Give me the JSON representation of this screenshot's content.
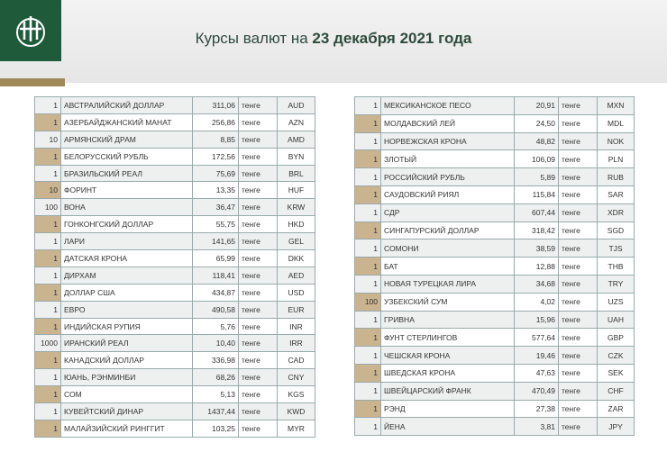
{
  "header": {
    "title_prefix": "Курсы валют на",
    "title_date": "23 декабря 2021 года"
  },
  "tables": [
    {
      "rows": [
        [
          1,
          "АВСТРАЛИЙСКИЙ ДОЛЛАР",
          "311,06",
          "тенге",
          "AUD"
        ],
        [
          1,
          "АЗЕРБАЙДЖАНСКИЙ МАНАТ",
          "256,86",
          "тенге",
          "AZN"
        ],
        [
          10,
          "АРМЯНСКИЙ ДРАМ",
          "8,85",
          "тенге",
          "AMD"
        ],
        [
          1,
          "БЕЛОРУССКИЙ РУБЛЬ",
          "172,56",
          "тенге",
          "BYN"
        ],
        [
          1,
          "БРАЗИЛЬСКИЙ РЕАЛ",
          "75,69",
          "тенге",
          "BRL"
        ],
        [
          10,
          "ФОРИНТ",
          "13,35",
          "тенге",
          "HUF"
        ],
        [
          100,
          "ВОНА",
          "36,47",
          "тенге",
          "KRW"
        ],
        [
          1,
          "ГОНКОНГСКИЙ ДОЛЛАР",
          "55,75",
          "тенге",
          "HKD"
        ],
        [
          1,
          "ЛАРИ",
          "141,65",
          "тенге",
          "GEL"
        ],
        [
          1,
          "ДАТСКАЯ КРОНА",
          "65,99",
          "тенге",
          "DKK"
        ],
        [
          1,
          "ДИРХАМ",
          "118,41",
          "тенге",
          "AED"
        ],
        [
          1,
          "ДОЛЛАР США",
          "434,87",
          "тенге",
          "USD"
        ],
        [
          1,
          "ЕВРО",
          "490,58",
          "тенге",
          "EUR"
        ],
        [
          1,
          "ИНДИЙСКАЯ РУПИЯ",
          "5,76",
          "тенге",
          "INR"
        ],
        [
          1000,
          "ИРАНСКИЙ РЕАЛ",
          "10,40",
          "тенге",
          "IRR"
        ],
        [
          1,
          "КАНАДСКИЙ ДОЛЛАР",
          "336,98",
          "тенге",
          "CAD"
        ],
        [
          1,
          "ЮАНЬ, РЭНМИНБИ",
          "68,26",
          "тенге",
          "CNY"
        ],
        [
          1,
          "СОМ",
          "5,13",
          "тенге",
          "KGS"
        ],
        [
          1,
          "КУВЕЙТСКИЙ ДИНАР",
          "1437,44",
          "тенге",
          "KWD"
        ],
        [
          1,
          "МАЛАЙЗИЙСКИЙ РИНГГИТ",
          "103,25",
          "тенге",
          "MYR"
        ]
      ]
    },
    {
      "rows": [
        [
          1,
          "МЕКСИКАНСКОЕ ПЕСО",
          "20,91",
          "тенге",
          "MXN"
        ],
        [
          1,
          "МОЛДАВСКИЙ ЛЕЙ",
          "24,50",
          "тенге",
          "MDL"
        ],
        [
          1,
          "НОРВЕЖСКАЯ КРОНА",
          "48,82",
          "тенге",
          "NOK"
        ],
        [
          1,
          "ЗЛОТЫЙ",
          "106,09",
          "тенге",
          "PLN"
        ],
        [
          1,
          "РОССИЙСКИЙ РУБЛЬ",
          "5,89",
          "тенге",
          "RUB"
        ],
        [
          1,
          "САУДОВСКИЙ РИЯЛ",
          "115,84",
          "тенге",
          "SAR"
        ],
        [
          1,
          "СДР",
          "607,44",
          "тенге",
          "XDR"
        ],
        [
          1,
          "СИНГАПУРСКИЙ ДОЛЛАР",
          "318,42",
          "тенге",
          "SGD"
        ],
        [
          1,
          "СОМОНИ",
          "38,59",
          "тенге",
          "TJS"
        ],
        [
          1,
          "БАТ",
          "12,88",
          "тенге",
          "THB"
        ],
        [
          1,
          "НОВАЯ ТУРЕЦКАЯ ЛИРА",
          "34,68",
          "тенге",
          "TRY"
        ],
        [
          100,
          "УЗБЕКСКИЙ СУМ",
          "4,02",
          "тенге",
          "UZS"
        ],
        [
          1,
          "ГРИВНА",
          "15,96",
          "тенге",
          "UAH"
        ],
        [
          1,
          "ФУНТ СТЕРЛИНГОВ",
          "577,64",
          "тенге",
          "GBP"
        ],
        [
          1,
          "ЧЕШСКАЯ КРОНА",
          "19,46",
          "тенге",
          "CZK"
        ],
        [
          1,
          "ШВЕДСКАЯ КРОНА",
          "47,63",
          "тенге",
          "SEK"
        ],
        [
          1,
          "ШВЕЙЦАРСКИЙ ФРАНК",
          "470,49",
          "тенге",
          "CHF"
        ],
        [
          1,
          "РЭНД",
          "27,38",
          "тенге",
          "ZAR"
        ],
        [
          1,
          "ЙЕНА",
          "3,81",
          "тенге",
          "JPY"
        ]
      ]
    }
  ]
}
